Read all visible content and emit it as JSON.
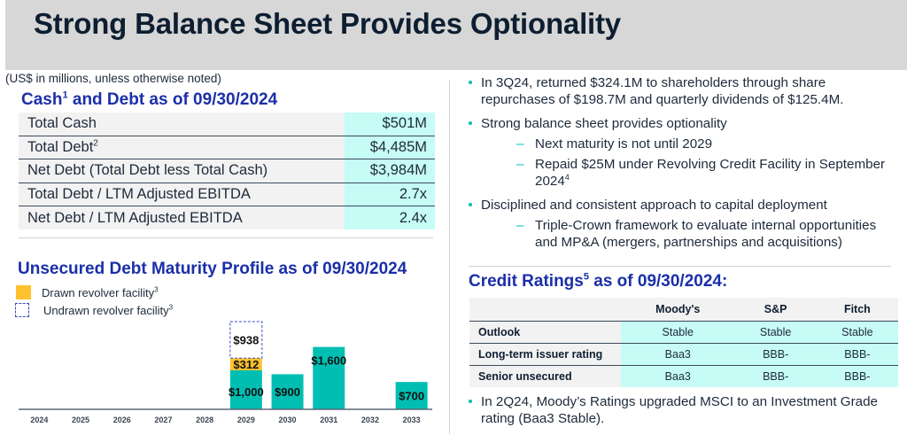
{
  "title": "Strong Balance Sheet Provides Optionality",
  "units_note": "(US$ in millions, unless otherwise noted)",
  "cash_debt": {
    "title": "Cash",
    "title_sup": "1",
    "title_rest": " and Debt as of 09/30/2024",
    "rows": [
      {
        "label": "Total Cash",
        "sup": "",
        "value": "$501M"
      },
      {
        "label": "Total Debt",
        "sup": "2",
        "value": "$4,485M"
      },
      {
        "label": "Net Debt (Total Debt less Total Cash)",
        "sup": "",
        "value": "$3,984M"
      },
      {
        "label": "Total Debt / LTM Adjusted EBITDA",
        "sup": "",
        "value": "2.7x"
      },
      {
        "label": "Net Debt / LTM Adjusted EBITDA",
        "sup": "",
        "value": "2.4x"
      }
    ]
  },
  "maturity": {
    "title": "Unsecured Debt Maturity Profile as of 09/30/2024",
    "legend": [
      {
        "label": "Drawn revolver facility",
        "sup": "3",
        "style": "solid",
        "color": "#fdc22e"
      },
      {
        "label": "Undrawn revolver facility",
        "sup": "3",
        "style": "dashed",
        "color": "#3b4bc4"
      }
    ]
  },
  "chart_data": {
    "type": "bar",
    "title": "Unsecured Debt Maturity Profile as of 09/30/2024",
    "xlabel": "",
    "ylabel": "",
    "categories": [
      "2024",
      "2025",
      "2026",
      "2027",
      "2028",
      "2029",
      "2030",
      "2031",
      "2032",
      "2033"
    ],
    "stacked": true,
    "series": [
      {
        "name": "Notes",
        "color": "#00bfb2",
        "values": [
          0,
          0,
          0,
          0,
          0,
          1000,
          900,
          1600,
          0,
          700
        ],
        "labels": [
          "",
          "",
          "",
          "",
          "",
          "$1,000",
          "$900",
          "$1,600",
          "",
          "$700"
        ]
      },
      {
        "name": "Drawn revolver facility",
        "color": "#fdc22e",
        "values": [
          0,
          0,
          0,
          0,
          0,
          312,
          0,
          0,
          0,
          0
        ],
        "labels": [
          "",
          "",
          "",
          "",
          "",
          "$312",
          "",
          "",
          "",
          ""
        ]
      },
      {
        "name": "Undrawn revolver facility",
        "color": "#3b4bc4",
        "style": "dashed",
        "values": [
          0,
          0,
          0,
          0,
          0,
          938,
          0,
          0,
          0,
          0
        ],
        "labels": [
          "",
          "",
          "",
          "",
          "",
          "$938",
          "",
          "",
          "",
          ""
        ]
      }
    ],
    "grid": false,
    "legend_position": "top-left",
    "axis_color": "#5a6a78"
  },
  "bullets": [
    {
      "text": "In 3Q24, returned $324.1M to shareholders through share repurchases of $198.7M and quarterly dividends of $125.4M.",
      "subs": []
    },
    {
      "text": "Strong balance sheet provides optionality",
      "subs": [
        {
          "text": "Next maturity is not until 2029",
          "sup": ""
        },
        {
          "text": "Repaid $25M under Revolving Credit Facility in September 2024",
          "sup": "4"
        }
      ]
    },
    {
      "text": "Disciplined and consistent approach to capital deployment",
      "subs": [
        {
          "text": "Triple-Crown framework to evaluate internal opportunities and MP&A (mergers, partnerships and acquisitions)",
          "sup": ""
        }
      ]
    }
  ],
  "credit": {
    "title": "Credit Ratings",
    "title_sup": "5",
    "title_rest": " as of 09/30/2024:",
    "headers": [
      "",
      "Moody's",
      "S&P",
      "Fitch"
    ],
    "rows": [
      {
        "label": "Outlook",
        "values": [
          "Stable",
          "Stable",
          "Stable"
        ]
      },
      {
        "label": "Long-term issuer rating",
        "values": [
          "Baa3",
          "BBB-",
          "BBB-"
        ]
      },
      {
        "label": "Senior unsecured",
        "values": [
          "Baa3",
          "BBB-",
          "BBB-"
        ]
      }
    ]
  },
  "final_bullet": "In 2Q24, Moody’s Ratings upgraded MSCI to an Investment Grade rating (Baa3 Stable).",
  "colors": {
    "teal": "#00bfb2",
    "gold": "#fdc22e",
    "heading_blue": "#1a2fa8",
    "value_bg": "#c6fbf6"
  }
}
